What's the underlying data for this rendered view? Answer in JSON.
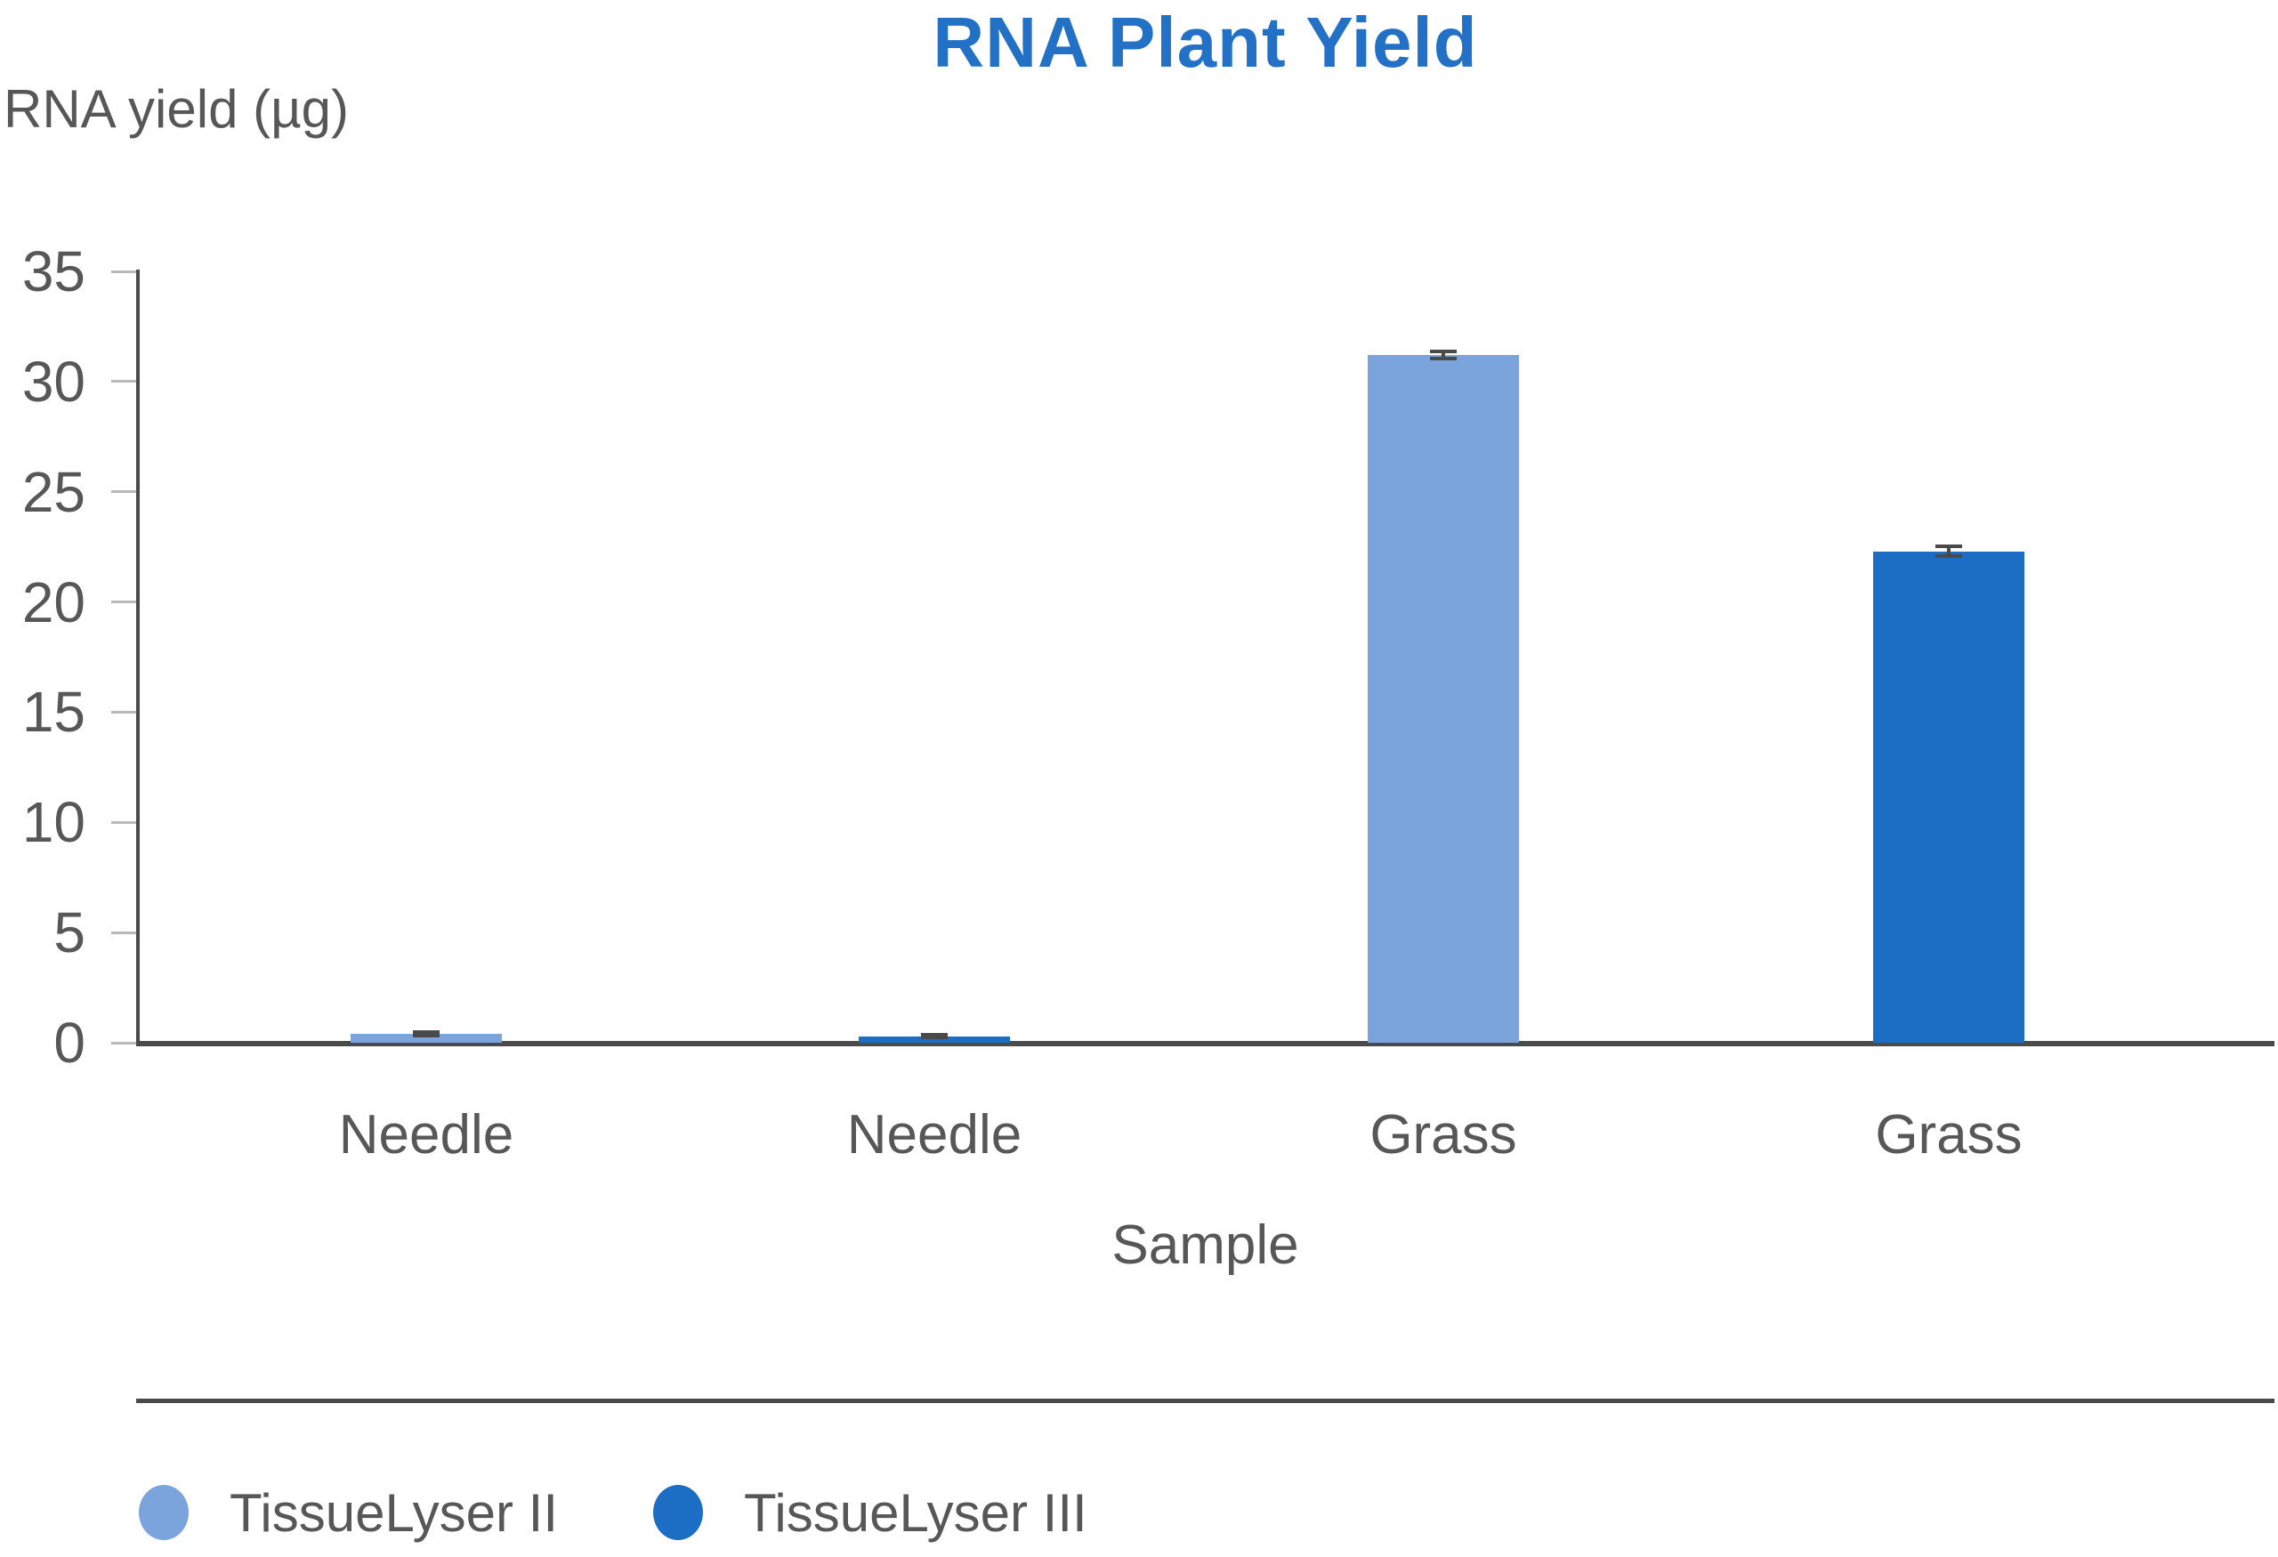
{
  "title": "RNA Plant Yield",
  "colors": {
    "title_blue": "#2271C6",
    "series_light_blue": "#7BA4DC",
    "series_dark_blue": "#1C6EC4",
    "axis_gray": "#4A4A4A",
    "tick_gray": "#B9B9B9",
    "label_gray": "#575757"
  },
  "chart_data": {
    "type": "bar",
    "title": "RNA Plant Yield",
    "ylabel": "RNA yield (µg)",
    "xlabel": "Sample",
    "ylim": [
      0,
      35
    ],
    "ytick_step": 5,
    "ytick_labels": [
      "0",
      "5",
      "10",
      "15",
      "20",
      "25",
      "30",
      "35"
    ],
    "grid": false,
    "legend_position": "bottom-left",
    "categories": [
      "Needle",
      "Needle",
      "Grass",
      "Grass"
    ],
    "bars": [
      {
        "category": "Needle",
        "series": "TissueLyser II",
        "value": 0.4,
        "error": 0.15
      },
      {
        "category": "Needle",
        "series": "TissueLyser III",
        "value": 0.3,
        "error": 0.15
      },
      {
        "category": "Grass",
        "series": "TissueLyser II",
        "value": 31.2,
        "error": 0.25
      },
      {
        "category": "Grass",
        "series": "TissueLyser III",
        "value": 22.3,
        "error": 0.3
      }
    ],
    "legend": [
      {
        "label": "TissueLyser II",
        "color": "#7BA4DC"
      },
      {
        "label": "TissueLyser III",
        "color": "#1C6EC4"
      }
    ]
  }
}
